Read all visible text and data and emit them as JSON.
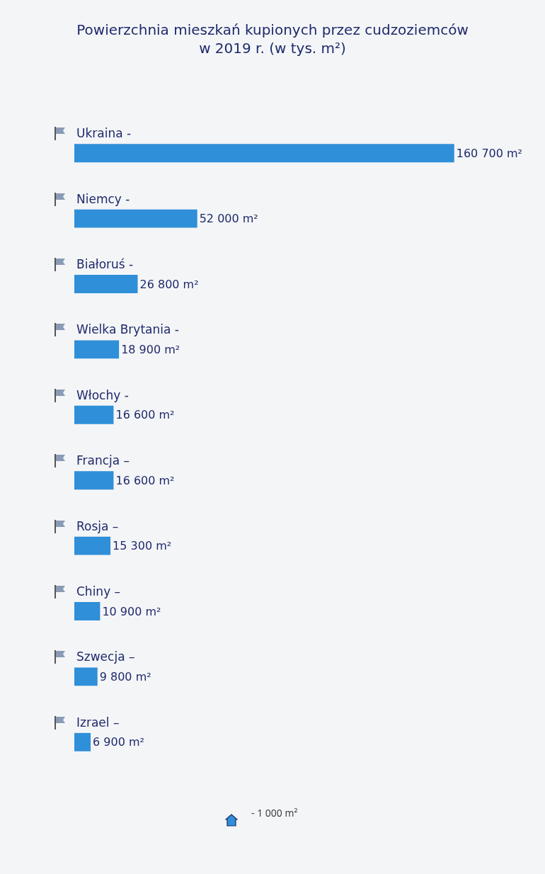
{
  "chart_data": {
    "type": "bar",
    "orientation": "horizontal",
    "title": "Powierzchnia mieszkań kupionych przez cudzoziemców\nw 2019 r. (w tys. m²)",
    "categories": [
      "Ukraina -",
      "Niemcy -",
      "Białoruś -",
      "Wielka Brytania -",
      "Włochy -",
      "Francja –",
      "Rosja –",
      "Chiny –",
      "Szwecja –",
      "Izrael –"
    ],
    "values": [
      160700,
      52000,
      26800,
      18900,
      16600,
      16600,
      15300,
      10900,
      9800,
      6900
    ],
    "value_labels": [
      "160 700 m²",
      "52 000 m²",
      "26 800 m²",
      "18 900 m²",
      "16 600 m²",
      "16 600 m²",
      "15 300 m²",
      "10 900 m²",
      "9 800 m²",
      "6 900 m²"
    ],
    "color": "#2f8fd8",
    "grid": false,
    "legend": false,
    "annotations": [
      "- 1 000 m²"
    ]
  }
}
